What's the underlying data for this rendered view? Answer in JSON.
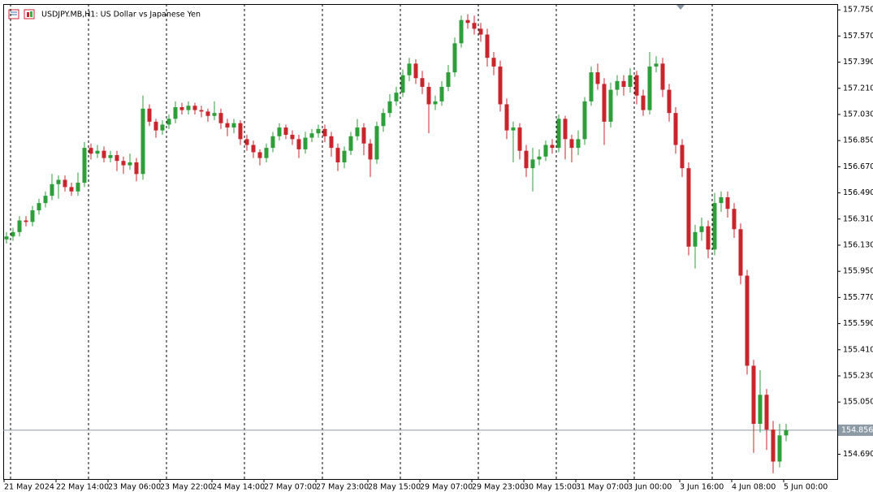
{
  "chart_data": {
    "type": "candlestick",
    "title": "USDJPY.MB,H1:  US Dollar vs Japanese Yen",
    "up_color": "#2e9e3a",
    "down_color": "#c8262c",
    "grid": true,
    "categories": [
      "21 May 2024",
      null,
      null,
      null,
      null,
      null,
      null,
      null,
      "22 May 14:00",
      null,
      null,
      null,
      null,
      null,
      null,
      null,
      "23 May 06:00",
      null,
      null,
      null,
      null,
      null,
      null,
      null,
      "23 May 22:00",
      null,
      null,
      null,
      null,
      null,
      null,
      null,
      "24 May 14:00",
      null,
      null,
      null,
      null,
      null,
      null,
      null,
      "27 May 07:00",
      null,
      null,
      null,
      null,
      null,
      null,
      null,
      "27 May 23:00",
      null,
      null,
      null,
      null,
      null,
      null,
      null,
      "28 May 15:00",
      null,
      null,
      null,
      null,
      null,
      null,
      null,
      "29 May 07:00",
      null,
      null,
      null,
      null,
      null,
      null,
      null,
      "29 May 23:00",
      null,
      null,
      null,
      null,
      null,
      null,
      null,
      "30 May 15:00",
      null,
      null,
      null,
      null,
      null,
      null,
      null,
      "31 May 07:00",
      null,
      null,
      null,
      null,
      null,
      null,
      null,
      "3 Jun 00:00",
      null,
      null,
      null,
      null,
      null,
      null,
      null,
      "3 Jun 16:00",
      null,
      null,
      null,
      null,
      null,
      null,
      null,
      "4 Jun 08:00",
      null,
      null,
      null,
      null,
      null,
      null,
      null,
      "5 Jun 00:00"
    ],
    "open": [
      156.17,
      156.19,
      156.22,
      156.3,
      156.29,
      156.37,
      156.42,
      156.47,
      156.55,
      156.58,
      156.53,
      156.5,
      156.56,
      156.8,
      156.76,
      156.78,
      156.73,
      156.75,
      156.71,
      156.68,
      156.7,
      156.62,
      157.07,
      156.98,
      156.92,
      156.96,
      157.0,
      157.08,
      157.06,
      157.09,
      157.06,
      157.05,
      157.02,
      157.04,
      156.97,
      156.94,
      156.97,
      156.86,
      156.82,
      156.77,
      156.73,
      156.8,
      156.88,
      156.94,
      156.89,
      156.86,
      156.79,
      156.87,
      156.9,
      156.93,
      156.88,
      156.8,
      156.7,
      156.78,
      156.88,
      156.94,
      156.83,
      156.72,
      156.95,
      157.04,
      157.12,
      157.18,
      157.3,
      157.38,
      157.28,
      157.22,
      157.1,
      157.12,
      157.22,
      157.32,
      157.52,
      157.68,
      157.66,
      157.62,
      157.58,
      157.42,
      157.36,
      157.1,
      156.92,
      156.94,
      156.78,
      156.66,
      156.72,
      156.74,
      156.82,
      156.8,
      157.0,
      156.86,
      156.8,
      156.86,
      157.12,
      157.32,
      157.24,
      156.98,
      157.2,
      157.26,
      157.22,
      157.3,
      157.16,
      157.06,
      157.36,
      157.38,
      157.2,
      157.04,
      156.82,
      156.66,
      156.12,
      156.22,
      156.26,
      156.1,
      156.42,
      156.46,
      156.38,
      156.24,
      155.92,
      155.3,
      154.9,
      155.1,
      154.86,
      154.64,
      154.82
    ],
    "high": [
      156.22,
      156.25,
      156.33,
      156.33,
      156.4,
      156.45,
      156.5,
      156.62,
      156.61,
      156.61,
      156.56,
      156.63,
      156.84,
      156.83,
      156.82,
      156.81,
      156.78,
      156.78,
      156.74,
      156.76,
      156.73,
      157.16,
      157.1,
      157.0,
      156.99,
      157.03,
      157.12,
      157.11,
      157.12,
      157.11,
      157.09,
      157.07,
      157.12,
      157.07,
      157.0,
      157.0,
      156.99,
      156.89,
      156.85,
      156.79,
      156.83,
      156.91,
      156.97,
      156.96,
      156.92,
      156.89,
      156.91,
      156.93,
      156.96,
      156.96,
      156.91,
      156.83,
      156.81,
      156.91,
      157.0,
      156.97,
      156.86,
      156.98,
      157.07,
      157.17,
      157.22,
      157.34,
      157.42,
      157.41,
      157.33,
      157.25,
      157.16,
      157.26,
      157.37,
      157.56,
      157.71,
      157.72,
      157.71,
      157.66,
      157.62,
      157.46,
      157.4,
      157.14,
      156.98,
      156.97,
      156.82,
      156.8,
      156.79,
      156.85,
      156.86,
      157.03,
      157.02,
      156.89,
      156.92,
      157.15,
      157.36,
      157.38,
      157.28,
      157.25,
      157.3,
      157.3,
      157.35,
      157.33,
      157.2,
      157.46,
      157.43,
      157.42,
      157.24,
      157.08,
      156.86,
      156.7,
      156.27,
      156.32,
      156.3,
      156.49,
      156.5,
      156.5,
      156.42,
      156.28,
      155.96,
      155.34,
      155.27,
      155.14,
      154.92,
      154.9,
      154.9
    ],
    "low": [
      156.14,
      156.16,
      156.19,
      156.26,
      156.26,
      156.34,
      156.39,
      156.44,
      156.45,
      156.5,
      156.47,
      156.47,
      156.53,
      156.72,
      156.73,
      156.7,
      156.7,
      156.64,
      156.62,
      156.65,
      156.57,
      156.58,
      156.95,
      156.87,
      156.89,
      156.93,
      156.97,
      157.03,
      157.03,
      157.03,
      157.01,
      156.98,
      156.99,
      156.93,
      156.88,
      156.9,
      156.82,
      156.78,
      156.73,
      156.68,
      156.7,
      156.77,
      156.85,
      156.86,
      156.82,
      156.73,
      156.76,
      156.84,
      156.87,
      156.84,
      156.74,
      156.64,
      156.66,
      156.75,
      156.85,
      156.75,
      156.6,
      156.69,
      156.91,
      157.01,
      157.09,
      157.15,
      157.26,
      157.24,
      157.17,
      156.9,
      157.06,
      157.09,
      157.19,
      157.29,
      157.49,
      157.62,
      157.58,
      157.53,
      157.36,
      157.3,
      157.05,
      156.86,
      156.7,
      156.72,
      156.6,
      156.5,
      156.68,
      156.71,
      156.76,
      156.77,
      156.72,
      156.7,
      156.75,
      156.82,
      157.09,
      157.2,
      156.82,
      156.94,
      157.16,
      157.16,
      157.18,
      157.1,
      157.02,
      157.03,
      157.32,
      157.15,
      156.98,
      156.76,
      156.6,
      156.06,
      155.97,
      156.16,
      156.04,
      156.06,
      156.36,
      156.32,
      156.18,
      155.86,
      155.24,
      154.7,
      154.84,
      154.72,
      154.56,
      154.6,
      154.78
    ],
    "close": [
      156.19,
      156.22,
      156.3,
      156.29,
      156.37,
      156.42,
      156.47,
      156.55,
      156.58,
      156.53,
      156.5,
      156.56,
      156.8,
      156.76,
      156.78,
      156.73,
      156.75,
      156.71,
      156.68,
      156.7,
      156.62,
      157.07,
      156.98,
      156.92,
      156.96,
      157.0,
      157.08,
      157.06,
      157.09,
      157.06,
      157.05,
      157.02,
      157.04,
      156.97,
      156.94,
      156.97,
      156.86,
      156.82,
      156.77,
      156.73,
      156.8,
      156.88,
      156.94,
      156.89,
      156.86,
      156.79,
      156.87,
      156.9,
      156.93,
      156.88,
      156.8,
      156.7,
      156.78,
      156.88,
      156.94,
      156.83,
      156.72,
      156.95,
      157.04,
      157.12,
      157.18,
      157.3,
      157.38,
      157.28,
      157.22,
      157.1,
      157.12,
      157.22,
      157.32,
      157.52,
      157.68,
      157.66,
      157.62,
      157.58,
      157.42,
      157.36,
      157.1,
      156.92,
      156.94,
      156.78,
      156.66,
      156.72,
      156.74,
      156.82,
      156.8,
      157.0,
      156.86,
      156.8,
      156.86,
      157.12,
      157.32,
      157.24,
      156.98,
      157.2,
      157.26,
      157.22,
      157.3,
      157.16,
      157.06,
      157.36,
      157.38,
      157.2,
      157.04,
      156.82,
      156.66,
      156.12,
      156.22,
      156.26,
      156.1,
      156.42,
      156.46,
      156.38,
      156.24,
      155.92,
      155.3,
      154.9,
      155.1,
      154.86,
      154.64,
      154.82,
      154.856
    ],
    "current_price": 154.856,
    "ylim": [
      154.52,
      157.79
    ],
    "yticks": [
      {
        "value": 157.75,
        "label": "157.750"
      },
      {
        "value": 157.57,
        "label": "157.570"
      },
      {
        "value": 157.39,
        "label": "157.390"
      },
      {
        "value": 157.21,
        "label": "157.210"
      },
      {
        "value": 157.03,
        "label": "157.030"
      },
      {
        "value": 156.85,
        "label": "156.850"
      },
      {
        "value": 156.67,
        "label": "156.670"
      },
      {
        "value": 156.49,
        "label": "156.490"
      },
      {
        "value": 156.31,
        "label": "156.310"
      },
      {
        "value": 156.13,
        "label": "156.130"
      },
      {
        "value": 155.95,
        "label": "155.950"
      },
      {
        "value": 155.77,
        "label": "155.770"
      },
      {
        "value": 155.59,
        "label": "155.590"
      },
      {
        "value": 155.41,
        "label": "155.410"
      },
      {
        "value": 155.23,
        "label": "155.230"
      },
      {
        "value": 155.05,
        "label": "155.050"
      },
      {
        "value": 154.69,
        "label": "154.690"
      }
    ]
  }
}
